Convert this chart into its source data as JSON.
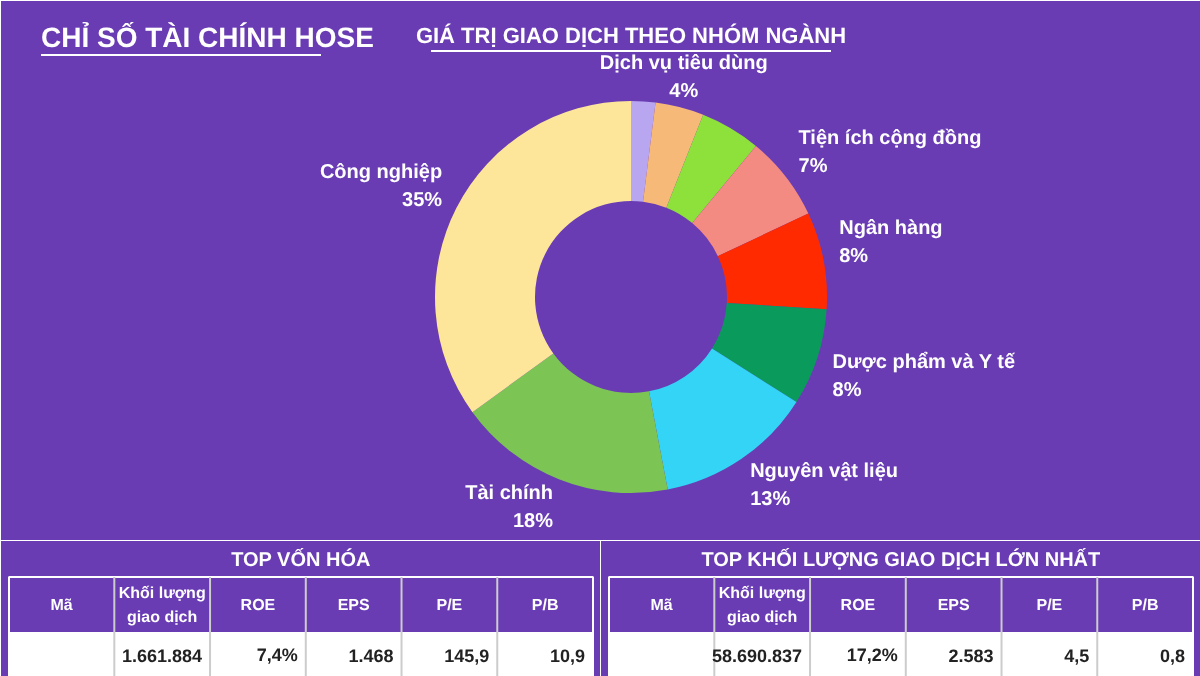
{
  "chart_data": [
    {
      "type": "donut",
      "title": "GIÁ TRỊ GIAO DỊCH THEO NHÓM NGÀNH",
      "annotations": [
        "CHỈ SỐ TÀI CHÍNH HOSE"
      ],
      "categories": [
        null,
        "Dịch vụ tiêu dùng",
        null,
        "Tiện ích cộng đồng",
        "Ngân hàng",
        "Dược phẩm và Y tế",
        "Nguyên vật liệu",
        "Tài chính",
        "Công nghiệp"
      ],
      "values": [
        2,
        4,
        5,
        7,
        8,
        8,
        13,
        18,
        35
      ],
      "value_labels": [
        null,
        "4%",
        null,
        "7%",
        "8%",
        "8%",
        "13%",
        "18%",
        "35%"
      ],
      "colors": [
        "#b9a6f0",
        "#f7b978",
        "#8ee03a",
        "#f48b82",
        "#ff2a00",
        "#0a9a5c",
        "#33d4f5",
        "#7cc454",
        "#fde59a"
      ]
    },
    {
      "type": "other",
      "title": "TOP VỐN HÓA",
      "categories": [
        "Mã",
        "Khối lượng\ngiao dịch",
        "ROE",
        "EPS",
        "P/E",
        "P/B"
      ],
      "annotations": [
        null,
        "1.661.884",
        "7,4%",
        "1.468",
        "145,9",
        "10,9"
      ]
    },
    {
      "type": "other",
      "title": "TOP KHỐI LƯỢNG GIAO DỊCH LỚN NHẤT",
      "categories": [
        "Mã",
        "Khối lượng\ngiao dịch",
        "ROE",
        "EPS",
        "P/E",
        "P/B"
      ],
      "annotations": [
        null,
        "58.690.837",
        "17,2%",
        "2.583",
        "4,5",
        "0,8"
      ]
    }
  ]
}
